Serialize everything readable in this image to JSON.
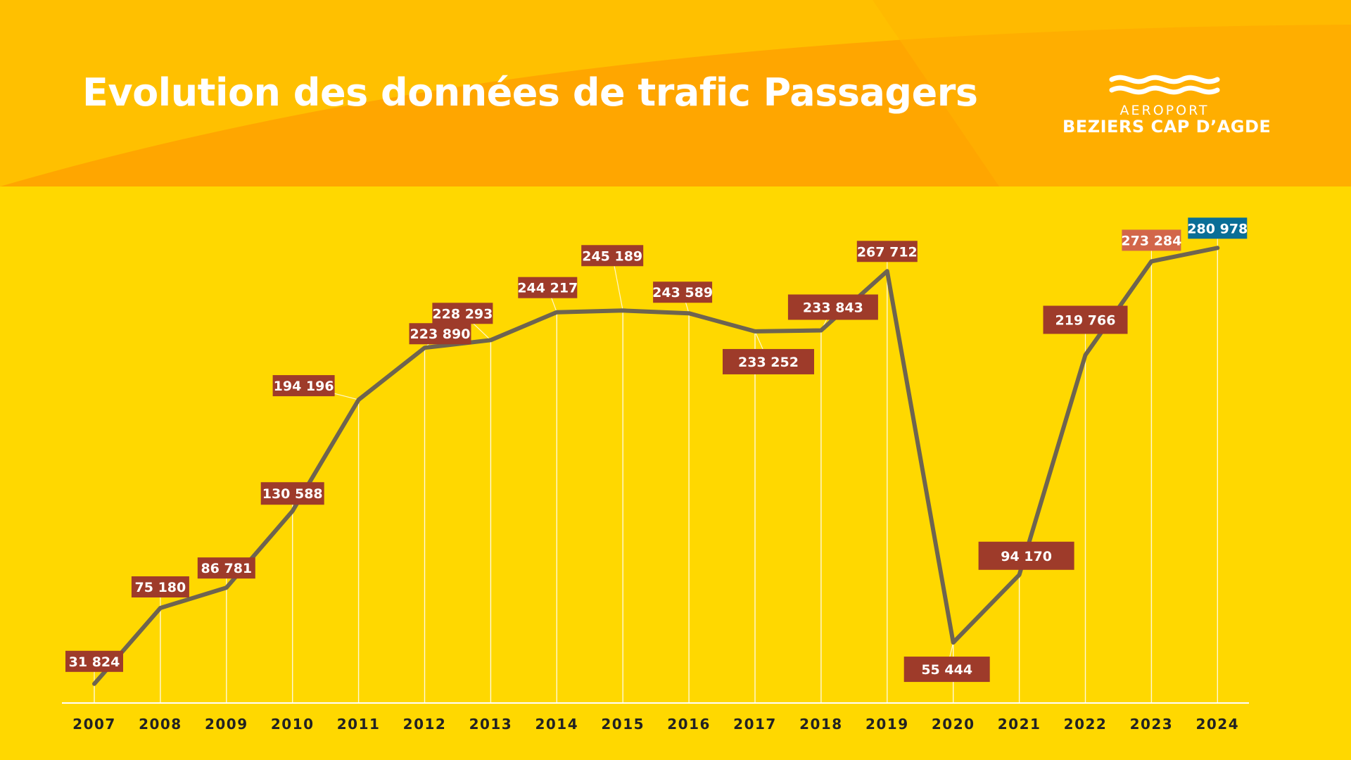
{
  "header": {
    "title": "Evolution des données de trafic Passagers",
    "logo_line1": "AEROPORT",
    "logo_line2": "BEZIERS CAP D’AGDE"
  },
  "colors": {
    "background": "#ffd800",
    "banner": "#ffab00",
    "line": "#6e6450",
    "label": "#9e3b2a",
    "label_2023": "#d2664a",
    "label_2024": "#0a6e96"
  },
  "chart_data": {
    "type": "line",
    "title": "Evolution des données de trafic Passagers",
    "xlabel": "",
    "ylabel": "",
    "categories": [
      "2007",
      "2008",
      "2009",
      "2010",
      "2011",
      "2012",
      "2013",
      "2014",
      "2015",
      "2016",
      "2017",
      "2018",
      "2019",
      "2020",
      "2021",
      "2022",
      "2023",
      "2024"
    ],
    "series": [
      {
        "values": [
          31824,
          75180,
          86781,
          130588,
          194196,
          223890,
          228293,
          244217,
          245189,
          243589,
          233252,
          233843,
          267712,
          55444,
          94170,
          219766,
          273284,
          280978
        ],
        "labels": [
          "31 824",
          "75 180",
          "86 781",
          "130 588",
          "194 196",
          "223 890",
          "228 293",
          "244 217",
          "245 189",
          "243 589",
          "233 252",
          "233 843",
          "267 712",
          "55 444",
          "94 170",
          "219 766",
          "273 284",
          "280 978"
        ]
      }
    ],
    "grid": false,
    "legend": "none"
  }
}
